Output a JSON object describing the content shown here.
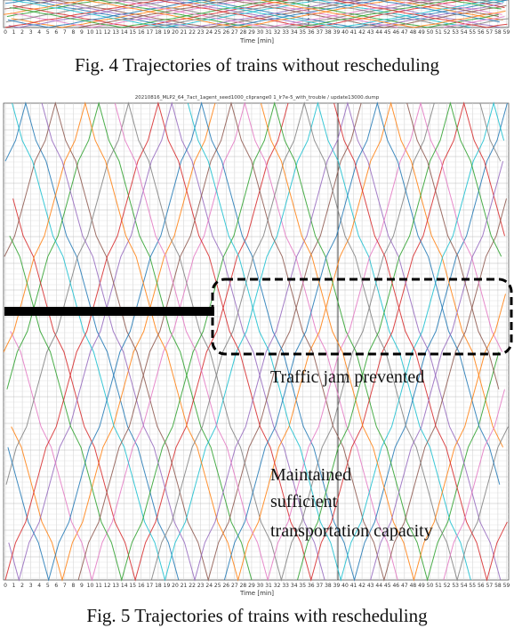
{
  "figures": [
    {
      "xticks": [
        0,
        1,
        2,
        3,
        4,
        5,
        6,
        7,
        8,
        9,
        10,
        11,
        12,
        13,
        14,
        15,
        16,
        17,
        18,
        19,
        20,
        21,
        22,
        23,
        24,
        25,
        26,
        27,
        28,
        29,
        30,
        31,
        32,
        33,
        34,
        35,
        36,
        37,
        38,
        39,
        40,
        41,
        42,
        43,
        44,
        45,
        46,
        47,
        48,
        49,
        50,
        51,
        52,
        53,
        54,
        55,
        56,
        57,
        58,
        59
      ],
      "xlabel": "Time [min]",
      "caption": "Fig. 4 Trajectories of trains without rescheduling"
    },
    {
      "title": "20210816_MLP2_64_7act_1agent_seed1000_cliprange0 1_lr7e-5_with_trouble / update13000.dump",
      "xticks": [
        0,
        1,
        2,
        3,
        4,
        5,
        6,
        7,
        8,
        9,
        10,
        11,
        12,
        13,
        14,
        15,
        16,
        17,
        18,
        19,
        20,
        21,
        22,
        23,
        24,
        25,
        26,
        27,
        28,
        29,
        30,
        31,
        32,
        33,
        34,
        35,
        36,
        37,
        38,
        39,
        40,
        41,
        42,
        43,
        44,
        45,
        46,
        47,
        48,
        49,
        50,
        51,
        52,
        53,
        54,
        55,
        56,
        57,
        58,
        59
      ],
      "xlabel": "Time [min]",
      "annotations": [
        "Traffic jam prevented",
        "Maintained",
        "sufficient",
        "transportation capacity"
      ],
      "caption": "Fig. 5 Trajectories of trains with rescheduling"
    }
  ]
}
